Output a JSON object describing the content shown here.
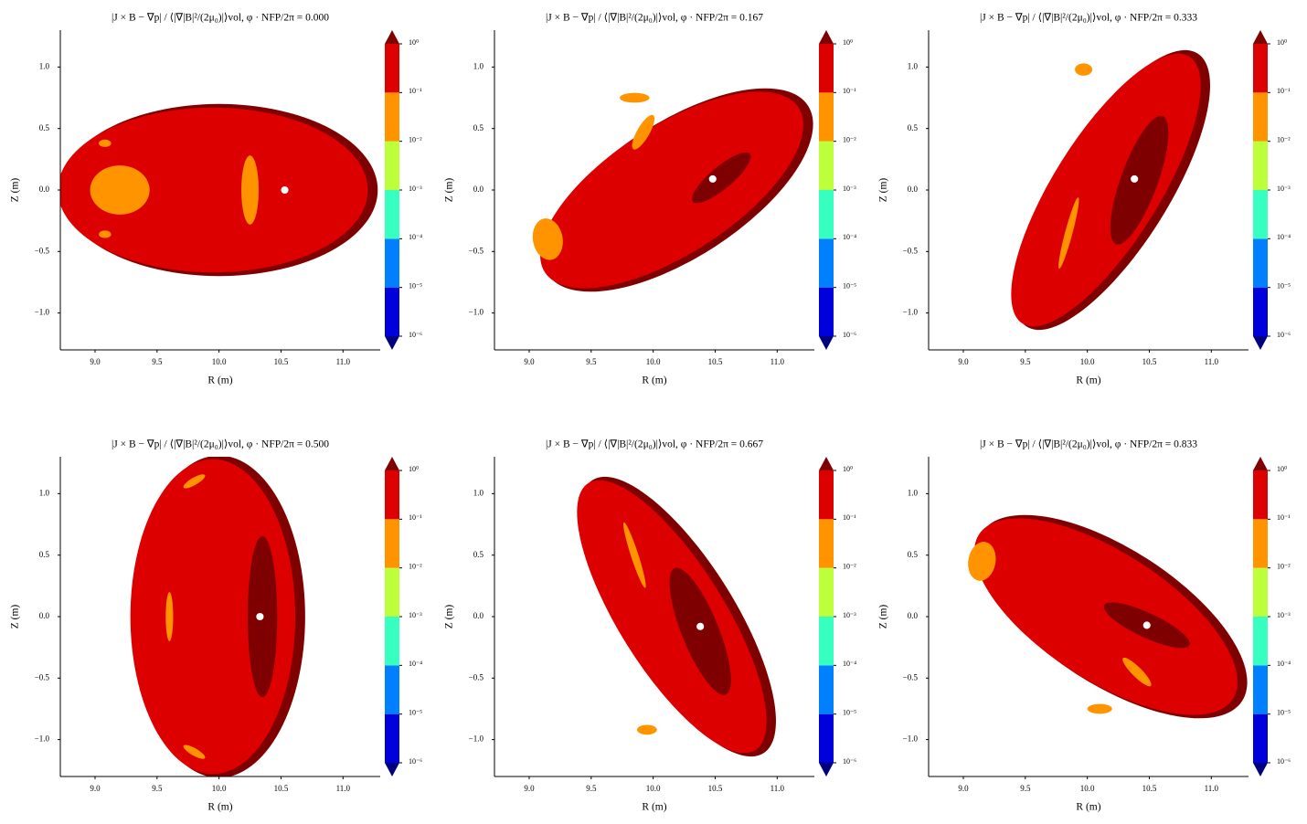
{
  "chart_data": [
    {
      "type": "contour",
      "title": "|J × B − ∇p| / ⟨|∇|B|²/(2μ₀)|⟩vol, φ · NFP/2π = 0.000",
      "xlabel": "R (m)",
      "ylabel": "Z (m)",
      "xlim": [
        8.72,
        11.3
      ],
      "ylim": [
        -1.3,
        1.3
      ],
      "xticks": [
        {
          "value": 9,
          "label": "9.0"
        },
        9.5,
        {
          "value": 10,
          "label": "10.0"
        },
        10.5,
        {
          "value": 11,
          "label": "11.0"
        }
      ],
      "yticks": [
        {
          "value": -1,
          "label": "−1.0"
        },
        {
          "value": -0.5,
          "label": "−0.5"
        },
        {
          "value": 0,
          "label": "0.0"
        },
        0.5,
        {
          "value": 1,
          "label": "1.0"
        }
      ],
      "colorbar": {
        "log": true,
        "ticks": [
          {
            "value": 1e-06,
            "label": "10⁻⁶"
          },
          {
            "value": 1e-05,
            "label": "10⁻⁵"
          },
          {
            "value": 0.0001,
            "label": "10⁻⁴"
          },
          {
            "value": 0.001,
            "label": "10⁻³"
          },
          {
            "value": 0.01,
            "label": "10⁻²"
          },
          {
            "value": 0.1,
            "label": "10⁻¹"
          },
          {
            "value": 1,
            "label": "10⁰"
          }
        ],
        "colors": [
          "#0000dd",
          "#0080ff",
          "#36ffc0",
          "#bdff3a",
          "#ff9400",
          "#dd0000"
        ],
        "under_color": "#00007f",
        "over_color": "#7f0000"
      }
    },
    {
      "type": "contour",
      "title": "|J × B − ∇p| / ⟨|∇|B|²/(2μ₀)|⟩vol, φ · NFP/2π = 0.167",
      "xlabel": "R (m)",
      "ylabel": "Z (m)",
      "xlim": [
        8.72,
        11.3
      ],
      "ylim": [
        -1.3,
        1.3
      ],
      "xticks": [
        {
          "value": 9,
          "label": "9.0"
        },
        9.5,
        {
          "value": 10,
          "label": "10.0"
        },
        10.5,
        {
          "value": 11,
          "label": "11.0"
        }
      ],
      "yticks": [
        {
          "value": -1,
          "label": "−1.0"
        },
        {
          "value": -0.5,
          "label": "−0.5"
        },
        {
          "value": 0,
          "label": "0.0"
        },
        0.5,
        {
          "value": 1,
          "label": "1.0"
        }
      ],
      "colorbar": {
        "log": true,
        "ticks": [
          {
            "value": 1e-06,
            "label": "10⁻⁶"
          },
          {
            "value": 1e-05,
            "label": "10⁻⁵"
          },
          {
            "value": 0.0001,
            "label": "10⁻⁴"
          },
          {
            "value": 0.001,
            "label": "10⁻³"
          },
          {
            "value": 0.01,
            "label": "10⁻²"
          },
          {
            "value": 0.1,
            "label": "10⁻¹"
          },
          {
            "value": 1,
            "label": "10⁰"
          }
        ],
        "colors": [
          "#0000dd",
          "#0080ff",
          "#36ffc0",
          "#bdff3a",
          "#ff9400",
          "#dd0000"
        ],
        "under_color": "#00007f",
        "over_color": "#7f0000"
      }
    },
    {
      "type": "contour",
      "title": "|J × B − ∇p| / ⟨|∇|B|²/(2μ₀)|⟩vol, φ · NFP/2π = 0.333",
      "xlabel": "R (m)",
      "ylabel": "Z (m)",
      "xlim": [
        8.72,
        11.3
      ],
      "ylim": [
        -1.3,
        1.3
      ],
      "xticks": [
        {
          "value": 9,
          "label": "9.0"
        },
        9.5,
        {
          "value": 10,
          "label": "10.0"
        },
        10.5,
        {
          "value": 11,
          "label": "11.0"
        }
      ],
      "yticks": [
        {
          "value": -1,
          "label": "−1.0"
        },
        {
          "value": -0.5,
          "label": "−0.5"
        },
        {
          "value": 0,
          "label": "0.0"
        },
        0.5,
        {
          "value": 1,
          "label": "1.0"
        }
      ],
      "colorbar": {
        "log": true,
        "ticks": [
          {
            "value": 1e-06,
            "label": "10⁻⁶"
          },
          {
            "value": 1e-05,
            "label": "10⁻⁵"
          },
          {
            "value": 0.0001,
            "label": "10⁻⁴"
          },
          {
            "value": 0.001,
            "label": "10⁻³"
          },
          {
            "value": 0.01,
            "label": "10⁻²"
          },
          {
            "value": 0.1,
            "label": "10⁻¹"
          },
          {
            "value": 1,
            "label": "10⁰"
          }
        ],
        "colors": [
          "#0000dd",
          "#0080ff",
          "#36ffc0",
          "#bdff3a",
          "#ff9400",
          "#dd0000"
        ],
        "under_color": "#00007f",
        "over_color": "#7f0000"
      }
    },
    {
      "type": "contour",
      "title": "|J × B − ∇p| / ⟨|∇|B|²/(2μ₀)|⟩vol, φ · NFP/2π = 0.500",
      "xlabel": "R (m)",
      "ylabel": "Z (m)",
      "xlim": [
        8.72,
        11.3
      ],
      "ylim": [
        -1.3,
        1.3
      ],
      "xticks": [
        {
          "value": 9,
          "label": "9.0"
        },
        9.5,
        {
          "value": 10,
          "label": "10.0"
        },
        10.5,
        {
          "value": 11,
          "label": "11.0"
        }
      ],
      "yticks": [
        {
          "value": -1,
          "label": "−1.0"
        },
        {
          "value": -0.5,
          "label": "−0.5"
        },
        {
          "value": 0,
          "label": "0.0"
        },
        0.5,
        {
          "value": 1,
          "label": "1.0"
        }
      ],
      "colorbar": {
        "log": true,
        "ticks": [
          {
            "value": 1e-06,
            "label": "10⁻⁶"
          },
          {
            "value": 1e-05,
            "label": "10⁻⁵"
          },
          {
            "value": 0.0001,
            "label": "10⁻⁴"
          },
          {
            "value": 0.001,
            "label": "10⁻³"
          },
          {
            "value": 0.01,
            "label": "10⁻²"
          },
          {
            "value": 0.1,
            "label": "10⁻¹"
          },
          {
            "value": 1,
            "label": "10⁰"
          }
        ],
        "colors": [
          "#0000dd",
          "#0080ff",
          "#36ffc0",
          "#bdff3a",
          "#ff9400",
          "#dd0000"
        ],
        "under_color": "#00007f",
        "over_color": "#7f0000"
      }
    },
    {
      "type": "contour",
      "title": "|J × B − ∇p| / ⟨|∇|B|²/(2μ₀)|⟩vol, φ · NFP/2π = 0.667",
      "xlabel": "R (m)",
      "ylabel": "Z (m)",
      "xlim": [
        8.72,
        11.3
      ],
      "ylim": [
        -1.3,
        1.3
      ],
      "xticks": [
        {
          "value": 9,
          "label": "9.0"
        },
        9.5,
        {
          "value": 10,
          "label": "10.0"
        },
        10.5,
        {
          "value": 11,
          "label": "11.0"
        }
      ],
      "yticks": [
        {
          "value": -1,
          "label": "−1.0"
        },
        {
          "value": -0.5,
          "label": "−0.5"
        },
        {
          "value": 0,
          "label": "0.0"
        },
        0.5,
        {
          "value": 1,
          "label": "1.0"
        }
      ],
      "colorbar": {
        "log": true,
        "ticks": [
          {
            "value": 1e-06,
            "label": "10⁻⁶"
          },
          {
            "value": 1e-05,
            "label": "10⁻⁵"
          },
          {
            "value": 0.0001,
            "label": "10⁻⁴"
          },
          {
            "value": 0.001,
            "label": "10⁻³"
          },
          {
            "value": 0.01,
            "label": "10⁻²"
          },
          {
            "value": 0.1,
            "label": "10⁻¹"
          },
          {
            "value": 1,
            "label": "10⁰"
          }
        ],
        "colors": [
          "#0000dd",
          "#0080ff",
          "#36ffc0",
          "#bdff3a",
          "#ff9400",
          "#dd0000"
        ],
        "under_color": "#00007f",
        "over_color": "#7f0000"
      }
    },
    {
      "type": "contour",
      "title": "|J × B − ∇p| / ⟨|∇|B|²/(2μ₀)|⟩vol, φ · NFP/2π = 0.833",
      "xlabel": "R (m)",
      "ylabel": "Z (m)",
      "xlim": [
        8.72,
        11.3
      ],
      "ylim": [
        -1.3,
        1.3
      ],
      "xticks": [
        {
          "value": 9,
          "label": "9.0"
        },
        9.5,
        {
          "value": 10,
          "label": "10.0"
        },
        10.5,
        {
          "value": 11,
          "label": "11.0"
        }
      ],
      "yticks": [
        {
          "value": -1,
          "label": "−1.0"
        },
        {
          "value": -0.5,
          "label": "−0.5"
        },
        {
          "value": 0,
          "label": "0.0"
        },
        0.5,
        {
          "value": 1,
          "label": "1.0"
        }
      ],
      "colorbar": {
        "log": true,
        "ticks": [
          {
            "value": 1e-06,
            "label": "10⁻⁶"
          },
          {
            "value": 1e-05,
            "label": "10⁻⁵"
          },
          {
            "value": 0.0001,
            "label": "10⁻⁴"
          },
          {
            "value": 0.001,
            "label": "10⁻³"
          },
          {
            "value": 0.01,
            "label": "10⁻²"
          },
          {
            "value": 0.1,
            "label": "10⁻¹"
          },
          {
            "value": 1,
            "label": "10⁰"
          }
        ],
        "colors": [
          "#0000dd",
          "#0080ff",
          "#36ffc0",
          "#bdff3a",
          "#ff9400",
          "#dd0000"
        ],
        "under_color": "#00007f",
        "over_color": "#7f0000"
      }
    }
  ]
}
